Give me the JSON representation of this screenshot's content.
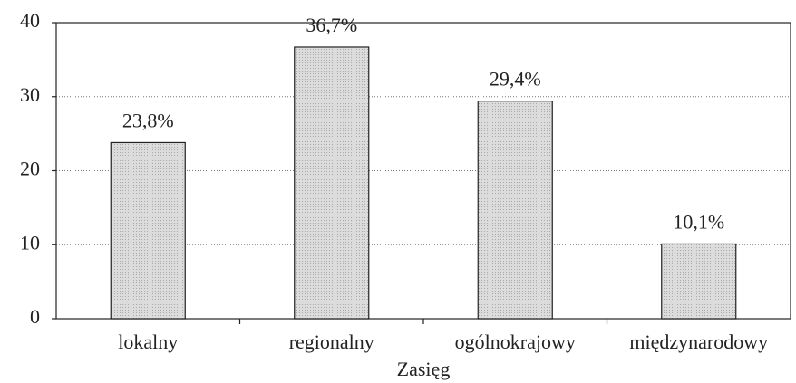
{
  "chart_data": {
    "type": "bar",
    "x_label": "Zasięg",
    "categories": [
      "lokalny",
      "regionalny",
      "ogólnokrajowy",
      "międzynarodowy"
    ],
    "values": [
      23.8,
      36.7,
      29.4,
      10.1
    ],
    "value_labels": [
      "23,8%",
      "36,7%",
      "29,4%",
      "10,1%"
    ],
    "color": "#d4d4d4",
    "ylim": [
      0,
      40
    ],
    "yticks": [
      0,
      10,
      20,
      30,
      40
    ],
    "grid": true
  }
}
